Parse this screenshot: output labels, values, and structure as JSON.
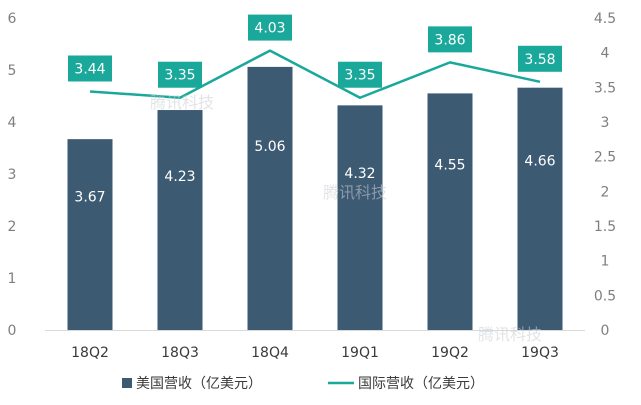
{
  "chart_data": {
    "type": "bar",
    "title": "",
    "categories": [
      "18Q2",
      "18Q3",
      "18Q4",
      "19Q1",
      "19Q2",
      "19Q3"
    ],
    "series": [
      {
        "name": "美国营收（亿美元）",
        "type": "bar",
        "axis": "left",
        "color": "#3d5a73",
        "values": [
          3.67,
          4.23,
          5.06,
          4.32,
          4.55,
          4.66
        ],
        "labels": [
          "3.67",
          "4.23",
          "5.06",
          "4.32",
          "4.55",
          "4.66"
        ]
      },
      {
        "name": "国际营收（亿美元）",
        "type": "line",
        "axis": "right",
        "color": "#1aa89b",
        "values": [
          3.44,
          3.35,
          4.03,
          3.35,
          3.86,
          3.58
        ],
        "labels": [
          "3.44",
          "3.35",
          "4.03",
          "3.35",
          "3.86",
          "3.58"
        ]
      }
    ],
    "y_left": {
      "ylim": [
        0,
        6
      ],
      "ticks": [
        "0",
        "1",
        "2",
        "3",
        "4",
        "5",
        "6"
      ]
    },
    "y_right": {
      "ylim": [
        0,
        4.5
      ],
      "ticks": [
        "0",
        "0.5",
        "1",
        "1.5",
        "2",
        "2.5",
        "3",
        "3.5",
        "4",
        "4.5"
      ]
    },
    "xlabel": "",
    "ylabel": "",
    "grid": false,
    "legend_position": "bottom",
    "watermark": "腾讯科技"
  }
}
